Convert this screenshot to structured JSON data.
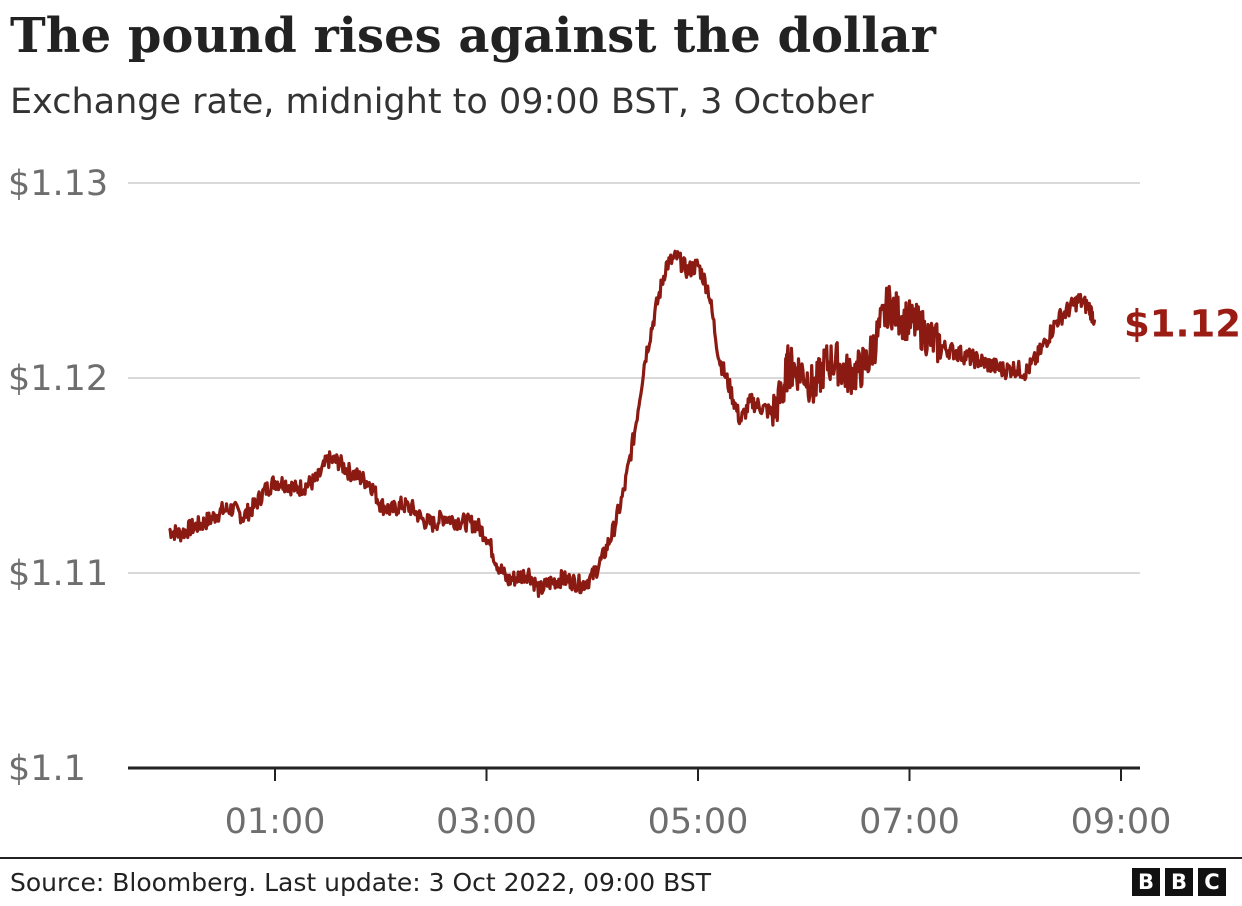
{
  "header": {
    "title": "The pound rises against the dollar",
    "subtitle": "Exchange rate, midnight to 09:00 BST, 3 October"
  },
  "footer": {
    "source": "Source: Bloomberg. Last update: 3 Oct 2022, 09:00 BST",
    "logo_letters": [
      "B",
      "B",
      "C"
    ]
  },
  "colors": {
    "line": "#8b1a12",
    "end_label": "#9b1c14",
    "grid": "#d9d9d9",
    "axis": "#222222",
    "tick_text": "#6e6e6e"
  },
  "chart_data": {
    "type": "line",
    "title": "The pound rises against the dollar",
    "subtitle": "Exchange rate, midnight to 09:00 BST, 3 October",
    "xlabel": "",
    "ylabel": "",
    "x_unit": "hours after midnight BST",
    "xlim": [
      -0.4,
      9.0
    ],
    "ylim": [
      1.1,
      1.13
    ],
    "y_ticks": [
      1.1,
      1.11,
      1.12,
      1.13
    ],
    "y_tick_labels": [
      "$1.1",
      "$1.11",
      "$1.12",
      "$1.13"
    ],
    "x_ticks": [
      1,
      3,
      5,
      7,
      9
    ],
    "x_tick_labels": [
      "01:00",
      "03:00",
      "05:00",
      "07:00",
      "09:00"
    ],
    "grid": true,
    "end_label": "$1.12",
    "series": [
      {
        "x": [
          0.0,
          0.1,
          0.2,
          0.3,
          0.4,
          0.5,
          0.6,
          0.7,
          0.8,
          0.9,
          1.0,
          1.1,
          1.2,
          1.3,
          1.4,
          1.5,
          1.6,
          1.7,
          1.8,
          1.9,
          2.0,
          2.1,
          2.2,
          2.3,
          2.4,
          2.5,
          2.6,
          2.7,
          2.8,
          2.9,
          3.0,
          3.1,
          3.2,
          3.3,
          3.4,
          3.5,
          3.6,
          3.7,
          3.8,
          3.9,
          4.0,
          4.1,
          4.2,
          4.3,
          4.4,
          4.5,
          4.6,
          4.7,
          4.8,
          4.9,
          5.0,
          5.1,
          5.2,
          5.3,
          5.4,
          5.5,
          5.6,
          5.7,
          5.8,
          5.85,
          5.9,
          6.0,
          6.1,
          6.2,
          6.3,
          6.4,
          6.5,
          6.6,
          6.7,
          6.8,
          6.9,
          7.0,
          7.1,
          7.2,
          7.3,
          7.4,
          7.5,
          7.6,
          7.7,
          7.8,
          7.9,
          8.0,
          8.1,
          8.2,
          8.3,
          8.4,
          8.5,
          8.6,
          8.7,
          8.75
        ],
        "values": [
          1.1122,
          1.112,
          1.1123,
          1.1125,
          1.1128,
          1.1132,
          1.1133,
          1.1129,
          1.1134,
          1.1142,
          1.1147,
          1.1146,
          1.1143,
          1.1145,
          1.1148,
          1.1158,
          1.1157,
          1.1152,
          1.1149,
          1.1146,
          1.1135,
          1.1132,
          1.1135,
          1.1133,
          1.1127,
          1.1125,
          1.1129,
          1.1127,
          1.1126,
          1.1125,
          1.1119,
          1.1105,
          1.1096,
          1.1098,
          1.11,
          1.1091,
          1.1095,
          1.1097,
          1.1096,
          1.1094,
          1.1098,
          1.1108,
          1.1122,
          1.1142,
          1.1172,
          1.121,
          1.1235,
          1.1258,
          1.1262,
          1.1255,
          1.1258,
          1.1245,
          1.121,
          1.1195,
          1.1178,
          1.1188,
          1.1185,
          1.1182,
          1.1192,
          1.1206,
          1.1205,
          1.1203,
          1.1194,
          1.1207,
          1.1209,
          1.1202,
          1.1203,
          1.1208,
          1.1222,
          1.1238,
          1.1232,
          1.1229,
          1.1226,
          1.122,
          1.1216,
          1.1214,
          1.1212,
          1.121,
          1.1208,
          1.1206,
          1.1204,
          1.1205,
          1.1203,
          1.121,
          1.122,
          1.123,
          1.1235,
          1.124,
          1.1236,
          1.123
        ],
        "color": "#8b1a12"
      }
    ]
  }
}
